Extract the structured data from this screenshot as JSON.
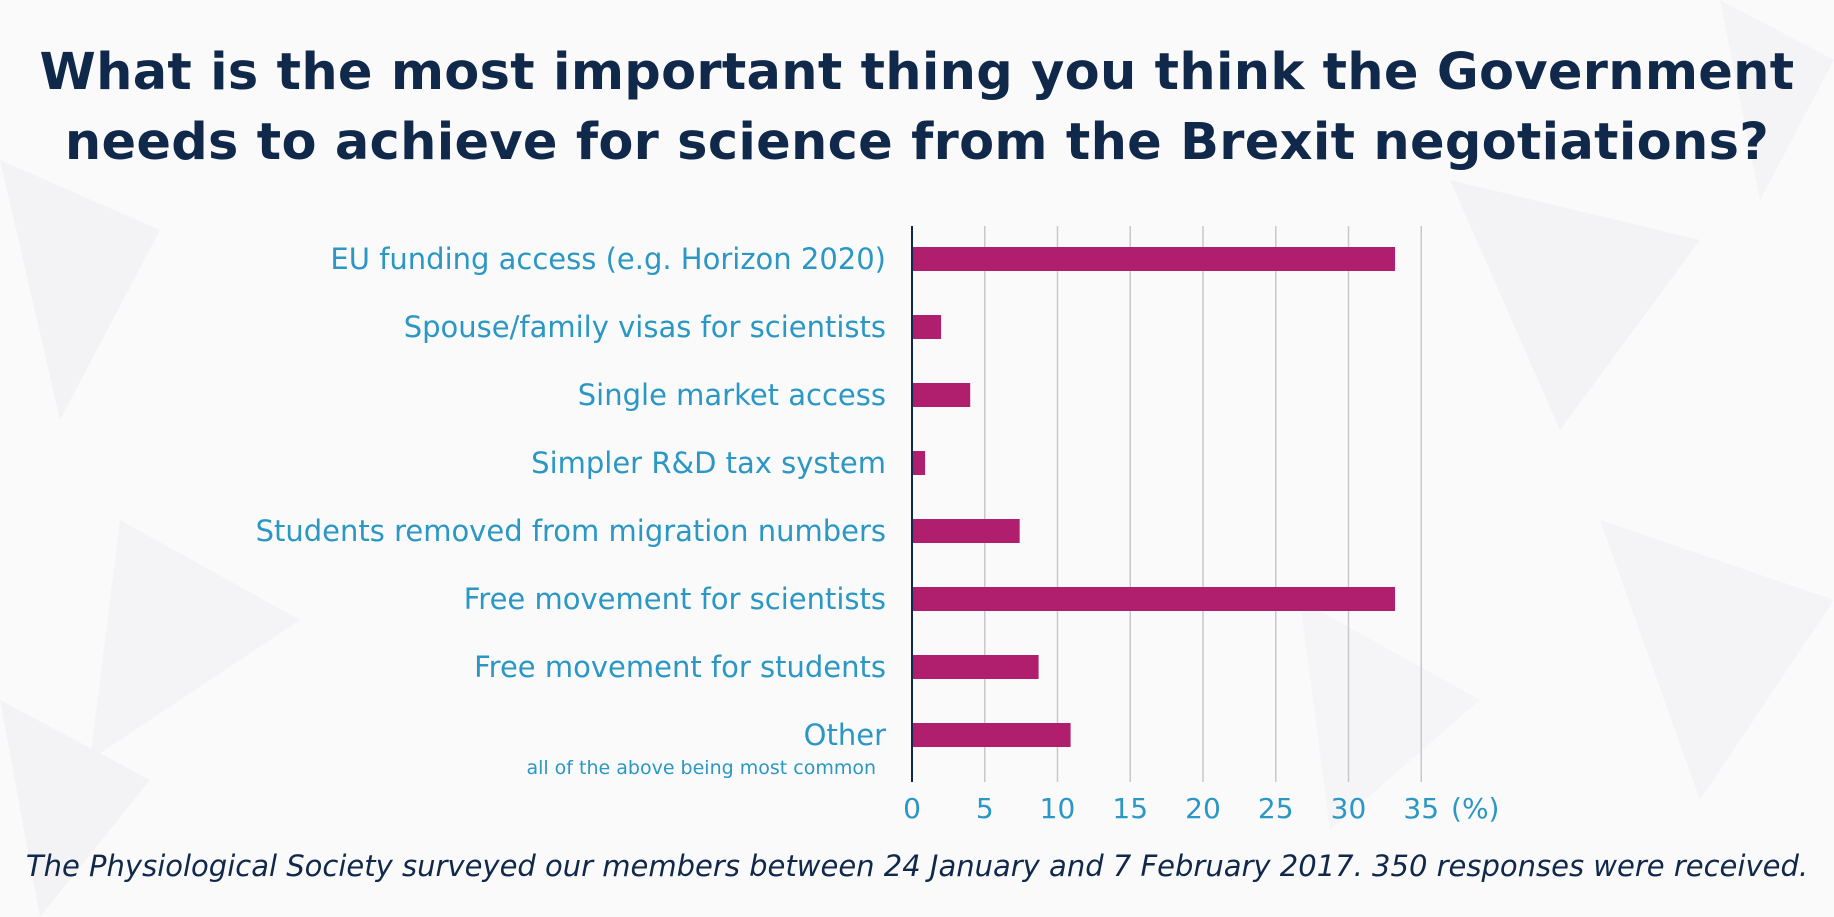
{
  "colors": {
    "title": "#10284a",
    "label": "#2a97c4",
    "bar": "#b01f6e",
    "grid": "#c8c8cc",
    "axis": "#10284a"
  },
  "chart_data": {
    "type": "bar",
    "orientation": "horizontal",
    "title_lines": [
      "What is the most important thing you think the Government",
      "needs to achieve for science from the Brexit negotiations?"
    ],
    "categories": [
      "EU funding access (e.g. Horizon 2020)",
      "Spouse/family visas for scientists",
      "Single market access",
      "Simpler R&D tax system",
      "Students removed from migration numbers",
      "Free movement for scientists",
      "Free movement for students",
      "Other"
    ],
    "category_notes": [
      "",
      "",
      "",
      "",
      "",
      "",
      "",
      "all of the above being most common"
    ],
    "values": [
      33.2,
      2.0,
      4.0,
      0.9,
      7.4,
      33.2,
      8.7,
      10.9
    ],
    "xticks": [
      0,
      5,
      10,
      15,
      20,
      25,
      30,
      35
    ],
    "xlim": [
      0,
      35
    ],
    "xunit_label": "(%)",
    "grid": true,
    "legend": "none"
  },
  "footnote": "The Physiological Society surveyed our members between 24 January and 7 February 2017. 350 responses were received."
}
